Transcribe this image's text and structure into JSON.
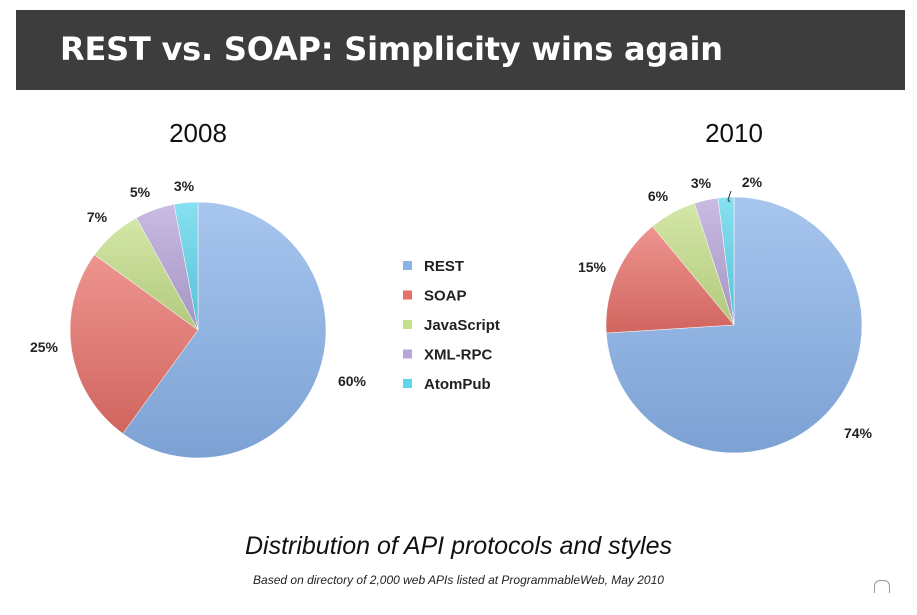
{
  "title": "REST vs. SOAP: Simplicity wins again",
  "caption": "Distribution of API protocols and styles",
  "source": "Based on directory of 2,000 web APIs listed at ProgrammableWeb, May 2010",
  "colors": {
    "REST": "#8ab3ea",
    "SOAP": "#e8706a",
    "JavaScript": "#c5df8a",
    "XML-RPC": "#b7a4d9",
    "AtomPub": "#5fd6ec"
  },
  "chart_data": [
    {
      "type": "pie",
      "title": "2008",
      "categories": [
        "REST",
        "SOAP",
        "JavaScript",
        "XML-RPC",
        "AtomPub"
      ],
      "values": [
        60,
        25,
        7,
        5,
        3
      ],
      "labels": [
        "60%",
        "25%",
        "7%",
        "5%",
        "3%"
      ]
    },
    {
      "type": "pie",
      "title": "2010",
      "categories": [
        "REST",
        "SOAP",
        "JavaScript",
        "XML-RPC",
        "AtomPub"
      ],
      "values": [
        74,
        15,
        6,
        3,
        2
      ],
      "labels": [
        "74%",
        "15%",
        "6%",
        "3%",
        "2%"
      ]
    }
  ],
  "legend": [
    "REST",
    "SOAP",
    "JavaScript",
    "XML-RPC",
    "AtomPub"
  ]
}
